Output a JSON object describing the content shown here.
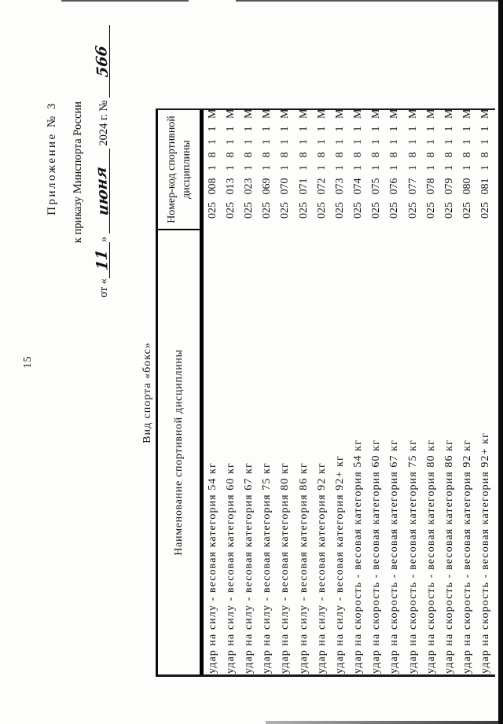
{
  "page_number": "15",
  "appendix": {
    "line1": "Приложение № 3",
    "line2": "к приказу Минспорта России",
    "from_prefix": "от «",
    "day": "11",
    "close_quote": "»",
    "month": "июня",
    "year_part": "2024 г. №",
    "order_number": "566"
  },
  "sport_title": "Вид спорта «бокс»",
  "table": {
    "name_header": "Наименование спортивной дисциплины",
    "code_header_line1": "Номер-код спортивной",
    "code_header_line2": "дисциплины",
    "rows": [
      {
        "name": "удар на силу - весовая категория 54 кг",
        "code": "025 008 1 8 1 1 М"
      },
      {
        "name": "удар на силу - весовая категория 60 кг",
        "code": "025 013 1 8 1 1 М"
      },
      {
        "name": "удар на силу - весовая категория 67 кг",
        "code": "025 023 1 8 1 1 М"
      },
      {
        "name": "удар на силу - весовая категория 75 кг",
        "code": "025 069 1 8 1 1 М"
      },
      {
        "name": "удар на силу - весовая категория 80 кг",
        "code": "025 070 1 8 1 1 М"
      },
      {
        "name": "удар на силу - весовая категория 86 кг",
        "code": "025 071 1 8 1 1 М"
      },
      {
        "name": "удар на силу - весовая категория 92 кг",
        "code": "025 072 1 8 1 1 М"
      },
      {
        "name": "удар на силу - весовая категория 92+ кг",
        "code": "025 073 1 8 1 1 М"
      },
      {
        "name": "удар на скорость - весовая категория 54 кг",
        "code": "025 074 1 8 1 1 М"
      },
      {
        "name": "удар на скорость - весовая категория 60 кг",
        "code": "025 075 1 8 1 1 М"
      },
      {
        "name": "удар на скорость - весовая категория 67 кг",
        "code": "025 076 1 8 1 1 М"
      },
      {
        "name": "удар на скорость - весовая категория 75 кг",
        "code": "025 077 1 8 1 1 М"
      },
      {
        "name": "удар на скорость - весовая категория 80 кг",
        "code": "025 078 1 8 1 1 М"
      },
      {
        "name": "удар на скорость - весовая категория 86 кг",
        "code": "025 079 1 8 1 1 М"
      },
      {
        "name": "удар на скорость - весовая категория 92 кг",
        "code": "025 080 1 8 1 1 М"
      },
      {
        "name": "удар на скорость - весовая категория 92+ кг",
        "code": "025 081 1 8 1 1 М"
      }
    ]
  }
}
